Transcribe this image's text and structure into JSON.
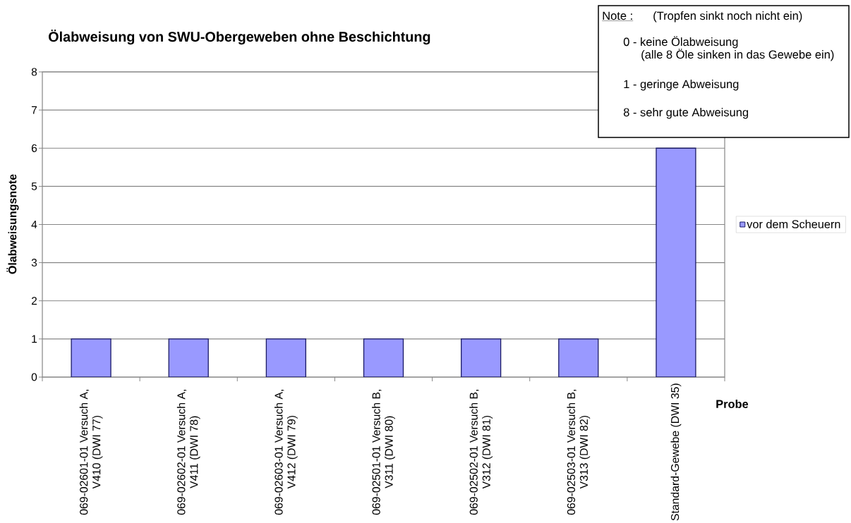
{
  "chart_data": {
    "type": "bar",
    "title": "Ölabweisung von SWU-Obergeweben ohne Beschichtung",
    "xlabel": "Probe",
    "ylabel": "Ölabweisungsnote",
    "categories": [
      "069-02601-01 Versuch A, V410 (DWI 77)",
      "069-02602-01 Versuch A, V411 (DWI 78)",
      "069-02603-01 Versuch A, V412 (DWI 79)",
      "069-02501-01 Versuch B, V311 (DWI 80)",
      "069-02502-01 Versuch B, V312 (DWI 81)",
      "069-02503-01 Versuch B, V313 (DWI 82)",
      "Standard-Gewebe (DWI 35)"
    ],
    "series": [
      {
        "name": "vor dem Scheuern",
        "color": "#9999ff",
        "values": [
          1,
          1,
          1,
          1,
          1,
          1,
          6
        ]
      }
    ],
    "ylim": [
      0,
      8
    ],
    "yticks": [
      0,
      1,
      2,
      3,
      4,
      5,
      6,
      7,
      8
    ],
    "grid": "y",
    "legend": "right",
    "annotations": [
      "Note :",
      "(Tropfen sinkt noch nicht ein)",
      "0 - keine Ölabweisung",
      "(alle 8 Öle sinken in das Gewebe ein)",
      "1 - geringe Abweisung",
      "8 - sehr gute Abweisung"
    ]
  }
}
